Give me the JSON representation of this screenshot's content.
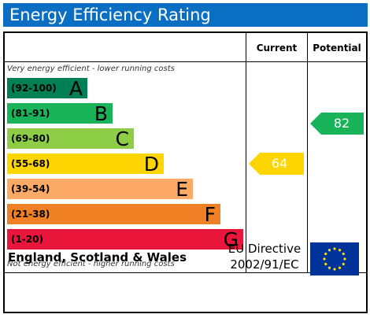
{
  "title": "Energy Efficiency Rating",
  "columns": {
    "current": "Current",
    "potential": "Potential"
  },
  "top_caption": "Very energy efficient - lower running costs",
  "bottom_caption": "Not energy efficient - higher running costs",
  "bands": [
    {
      "range": "(92-100)",
      "letter": "A",
      "color": "#008054"
    },
    {
      "range": "(81-91)",
      "letter": "B",
      "color": "#19b459"
    },
    {
      "range": "(69-80)",
      "letter": "C",
      "color": "#8dce46"
    },
    {
      "range": "(55-68)",
      "letter": "D",
      "color": "#ffd500"
    },
    {
      "range": "(39-54)",
      "letter": "E",
      "color": "#fcaa65"
    },
    {
      "range": "(21-38)",
      "letter": "F",
      "color": "#ef8023"
    },
    {
      "range": "(1-20)",
      "letter": "G",
      "color": "#e9153b"
    }
  ],
  "current": {
    "value": "64",
    "band": "D",
    "color": "#ffd500"
  },
  "potential": {
    "value": "82",
    "band": "B",
    "color": "#19b459"
  },
  "footer": {
    "region": "England, Scotland & Wales",
    "directive_line1": "EU Directive",
    "directive_line2": "2002/91/EC",
    "flag_icon": "eu-flag-icon"
  }
}
